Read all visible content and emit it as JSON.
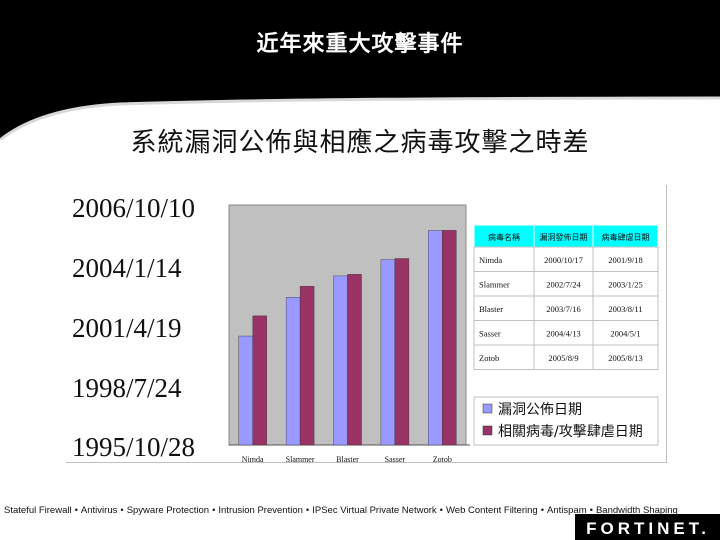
{
  "header": {
    "title": "近年來重大攻擊事件"
  },
  "chart_data": {
    "type": "bar",
    "title": "系統漏洞公佈與相應之病毒攻擊之時差",
    "categories": [
      "Nimda",
      "Slammer",
      "Blaster",
      "Sasser",
      "Zotob"
    ],
    "y_axis": {
      "type": "date",
      "min": "1995/10/28",
      "max": "2006/10/10",
      "tick_labels": [
        "2006/10/10",
        "2004/1/14",
        "2001/4/19",
        "1998/7/24",
        "1995/10/28"
      ]
    },
    "series": [
      {
        "name": "漏洞公佈日期",
        "color": "#9999ff",
        "values": [
          "2000/10/17",
          "2002/7/24",
          "2003/7/16",
          "2004/4/13",
          "2005/8/9"
        ]
      },
      {
        "name": "相關病毒/攻擊肆虐日期",
        "color": "#993366",
        "values": [
          "2001/9/18",
          "2003/1/25",
          "2003/8/11",
          "2004/5/1",
          "2005/8/13"
        ]
      }
    ],
    "legend": "bottom-right",
    "grid": false
  },
  "table": {
    "headers": [
      "病毒名稱",
      "漏洞發佈日期",
      "病毒肆虐日期"
    ],
    "rows": [
      [
        "Nimda",
        "2000/10/17",
        "2001/9/18"
      ],
      [
        "Slammer",
        "2002/7/24",
        "2003/1/25"
      ],
      [
        "Blaster",
        "2003/7/16",
        "2003/8/11"
      ],
      [
        "Sasser",
        "2004/4/13",
        "2004/5/1"
      ],
      [
        "Zotob",
        "2005/8/9",
        "2005/8/13"
      ]
    ]
  },
  "footer": {
    "features": [
      "Stateful Firewall",
      "Antivirus",
      "Spyware Protection",
      "Intrusion Prevention",
      "IPSec Virtual Private Network",
      "Web Content Filtering",
      "Antispam",
      "Bandwidth Shaping"
    ],
    "logo": "FORTINET."
  },
  "colors": {
    "accent": "#000000",
    "table_header": "#00ffff",
    "plot_bg": "#c0c0c0"
  }
}
